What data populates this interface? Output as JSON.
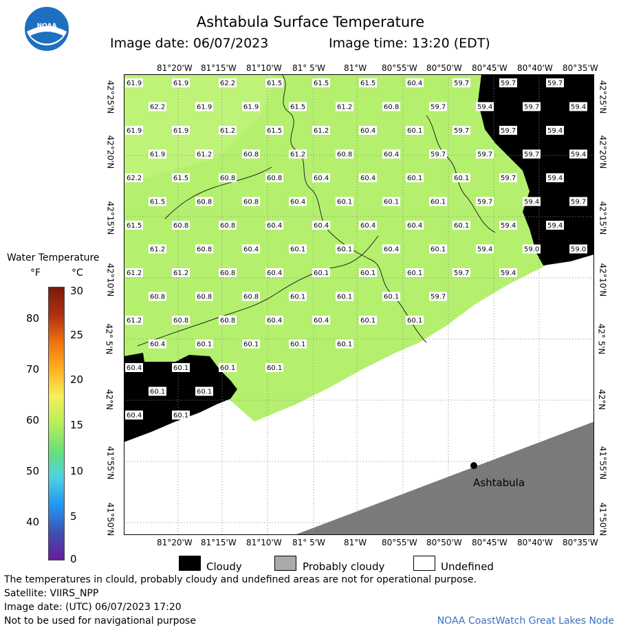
{
  "header": {
    "title": "Ashtabula Surface Temperature",
    "image_date": "Image date: 06/07/2023",
    "image_time": "Image time: 13:20 (EDT)"
  },
  "logo_text": "NOAA",
  "map": {
    "top_lon_ticks": [
      "81°20'W",
      "81°15'W",
      "81°10'W",
      "81° 5'W",
      "81°W",
      "80°55'W",
      "80°50'W",
      "80°45'W",
      "80°40'W",
      "80°35'W"
    ],
    "bottom_lon_ticks": [
      "81°20'W",
      "81°15'W",
      "81°10'W",
      "81° 5'W",
      "81°W",
      "80°55'W",
      "80°50'W",
      "80°45'W",
      "80°40'W",
      "80°35'W"
    ],
    "left_lat_ticks": [
      "42°25'N",
      "42°20'N",
      "42°15'N",
      "42°10'N",
      "42° 5'N",
      "42°N",
      "41°55'N",
      "41°50'N"
    ],
    "right_lat_ticks": [
      "42°25'N",
      "42°20'N",
      "42°15'N",
      "42°10'N",
      "42° 5'N",
      "42°N",
      "41°55'N",
      "41°50'N"
    ],
    "city_label": "Ashtabula",
    "temps": [
      [
        "61.9",
        "61.9",
        "62.2",
        "61.5",
        "61.5",
        "61.5",
        "60.4",
        "59.7",
        "59.7",
        "59.7"
      ],
      [
        "62.2",
        "61.9",
        "61.9",
        "61.5",
        "61.2",
        "60.8",
        "59.7",
        "59.4",
        "59.7",
        "59.4"
      ],
      [
        "61.9",
        "61.9",
        "61.2",
        "61.5",
        "61.2",
        "60.4",
        "60.1",
        "59.7",
        "59.7",
        "59.4"
      ],
      [
        "61.9",
        "61.2",
        "60.8",
        "61.2",
        "60.8",
        "60.4",
        "59.7",
        "59.7",
        "59.7",
        "59.4"
      ],
      [
        "62.2",
        "61.5",
        "60.8",
        "60.8",
        "60.4",
        "60.4",
        "60.1",
        "60.1",
        "59.7",
        "59.4"
      ],
      [
        "61.5",
        "60.8",
        "60.8",
        "60.4",
        "60.1",
        "60.1",
        "60.1",
        "59.7",
        "59.4",
        "59.7"
      ],
      [
        "61.5",
        "60.8",
        "60.8",
        "60.4",
        "60.4",
        "60.4",
        "60.4",
        "60.1",
        "59.4",
        "59.4"
      ],
      [
        "61.2",
        "60.8",
        "60.4",
        "60.1",
        "60.1",
        "60.4",
        "60.1",
        "59.4",
        "59.0",
        "59.0"
      ],
      [
        "61.2",
        "61.2",
        "60.8",
        "60.4",
        "60.1",
        "60.1",
        "60.1",
        "59.7",
        "59.4"
      ],
      [
        "60.8",
        "60.8",
        "60.8",
        "60.1",
        "60.1",
        "60.1",
        "59.7"
      ],
      [
        "61.2",
        "60.8",
        "60.8",
        "60.4",
        "60.4",
        "60.1",
        "60.1"
      ],
      [
        "60.4",
        "60.1",
        "60.1",
        "60.1",
        "60.1"
      ],
      [
        "60.4",
        "60.1",
        "60.1",
        "60.1"
      ],
      [
        "60.1",
        "60.1"
      ],
      [
        "60.4",
        "60.1"
      ]
    ]
  },
  "legend": {
    "title": "Water Temperature",
    "unit_f": "°F",
    "unit_c": "°C",
    "f_ticks": [
      "80",
      "70",
      "60",
      "50",
      "40"
    ],
    "c_ticks": [
      "30",
      "25",
      "20",
      "15",
      "10",
      "5",
      "0"
    ],
    "colors": [
      "#6a1b9a",
      "#3f51b5",
      "#2196f3",
      "#4dd0e1",
      "#69e07a",
      "#b6ef5a",
      "#f6ef5a",
      "#ffb020",
      "#f07010",
      "#b03010",
      "#7a1a0a"
    ]
  },
  "categories": [
    {
      "label": "Cloudy",
      "color": "#000000"
    },
    {
      "label": "Probably cloudy",
      "color": "#aaaaaa"
    },
    {
      "label": "Undefined",
      "color": "#ffffff"
    }
  ],
  "footer": {
    "line1": "The temperatures in clould, probably cloudy and undefined areas are not for operational purpose.",
    "line2": "Satellite: VIIRS_NPP",
    "line3": "Image date: (UTC) 06/07/2023  17:20",
    "line4": "Not to be used for navigational purpose",
    "credit": "NOAA CoastWatch Great Lakes Node"
  },
  "colors": {
    "water": "#b4f06e",
    "cloud": "#000000",
    "land": "#7a7a7a",
    "grid": "#999999"
  }
}
